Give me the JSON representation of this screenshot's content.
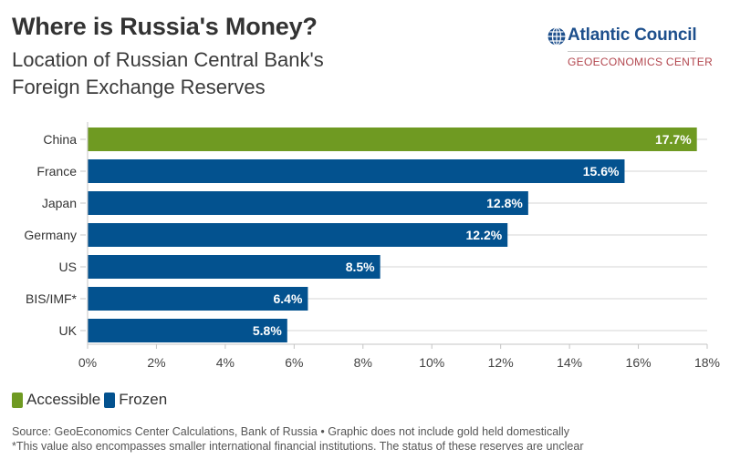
{
  "header": {
    "title": "Where is Russia's Money?",
    "subtitle_line1": "Location of Russian Central Bank's",
    "subtitle_line2": "Foreign Exchange Reserves"
  },
  "logo": {
    "name": "Atlantic Council",
    "subtitle": "GEOECONOMICS CENTER",
    "icon": "globe-icon",
    "name_color": "#1d4f8c",
    "subtitle_color": "#b3474f"
  },
  "colors": {
    "Accessible": "#6f9a22",
    "Frozen": "#03528f",
    "gridline": "#d6d6d6",
    "axis": "#c4c4c4"
  },
  "chart_data": {
    "type": "bar",
    "orientation": "horizontal",
    "title": "Where is Russia's Money?",
    "subtitle": "Location of Russian Central Bank's Foreign Exchange Reserves",
    "categories": [
      "China",
      "France",
      "Japan",
      "Germany",
      "US",
      "BIS/IMF*",
      "UK"
    ],
    "values": [
      17.7,
      15.6,
      12.8,
      12.2,
      8.5,
      6.4,
      5.8
    ],
    "value_labels": [
      "17.7%",
      "15.6%",
      "12.8%",
      "12.2%",
      "8.5%",
      "6.4%",
      "5.8%"
    ],
    "status": [
      "Accessible",
      "Frozen",
      "Frozen",
      "Frozen",
      "Frozen",
      "Frozen",
      "Frozen"
    ],
    "xlabel": "",
    "ylabel": "",
    "xlim": [
      0,
      18
    ],
    "xticks": [
      0,
      2,
      4,
      6,
      8,
      10,
      12,
      14,
      16,
      18
    ],
    "xtick_labels": [
      "0%",
      "2%",
      "4%",
      "6%",
      "8%",
      "10%",
      "12%",
      "14%",
      "16%",
      "18%"
    ],
    "grid": true,
    "legend": {
      "placement": "bottom-left",
      "entries": [
        "Accessible",
        "Frozen"
      ]
    }
  },
  "footer": {
    "source": "Source: GeoEconomics Center Calculations, Bank of Russia • Graphic does not include gold held domestically",
    "note": "*This value also encompasses smaller international financial institutions. The status of these reserves are unclear"
  }
}
